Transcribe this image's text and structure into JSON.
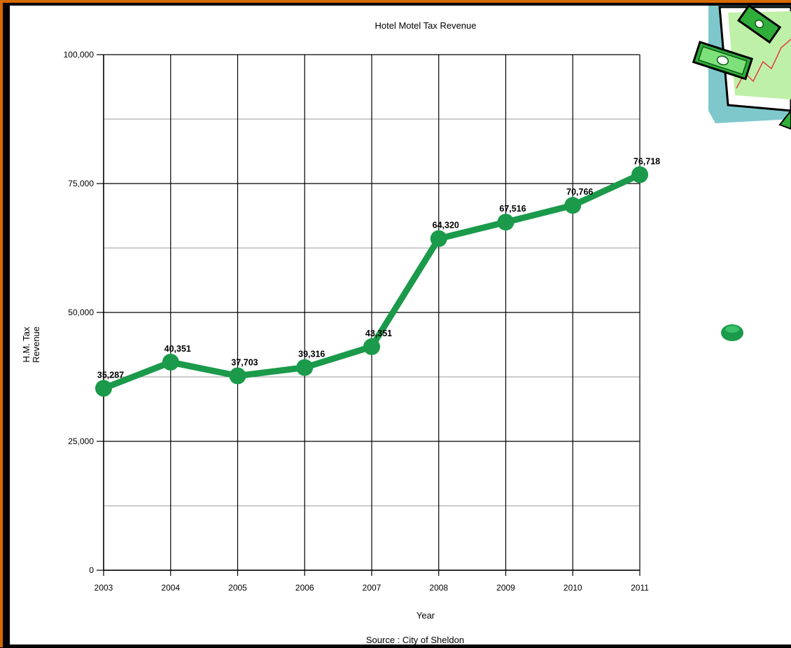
{
  "chart_data": {
    "type": "line",
    "title": "Hotel Motel Tax Revenue",
    "xlabel": "Year",
    "ylabel_lines": [
      "H.M. Tax",
      "Revenue"
    ],
    "source": "Source : City of Sheldon",
    "categories": [
      "2003",
      "2004",
      "2005",
      "2006",
      "2007",
      "2008",
      "2009",
      "2010",
      "2011"
    ],
    "series": [
      {
        "values": [
          35287,
          40351,
          37703,
          39316,
          43351,
          64320,
          67516,
          70766,
          76718
        ],
        "data_labels": [
          "35,287",
          "40,351",
          "37,703",
          "39,316",
          "43,351",
          "64,320",
          "67,516",
          "70,766",
          "76,718"
        ],
        "color": "#1a9a4a"
      }
    ],
    "ylim": [
      0,
      100000
    ],
    "y_ticks": [
      0,
      25000,
      50000,
      75000,
      100000
    ],
    "y_tick_labels": [
      "0",
      "25,000",
      "50,000",
      "75,000",
      "100,000"
    ],
    "grid": true,
    "legend": "none"
  },
  "decorations": {
    "clipart": "money-chart-icon",
    "bullet": "green-bullet-icon"
  },
  "colors": {
    "frame": "#d46a00",
    "background": "#000000",
    "series": "#1a9a4a"
  }
}
